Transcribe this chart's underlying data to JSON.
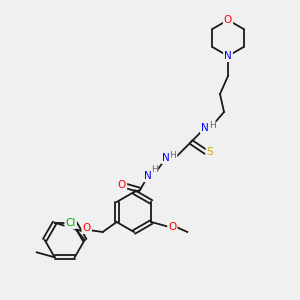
{
  "bg_color": "#f0f0f0",
  "bond_color": "#1a1a1a",
  "atom_colors": {
    "O": "#ff0000",
    "N": "#0000ff",
    "S": "#ccaa00",
    "Cl": "#00aa00",
    "C": "#1a1a1a",
    "H": "#666666"
  },
  "font_size": 7.5,
  "bond_width": 1.3
}
